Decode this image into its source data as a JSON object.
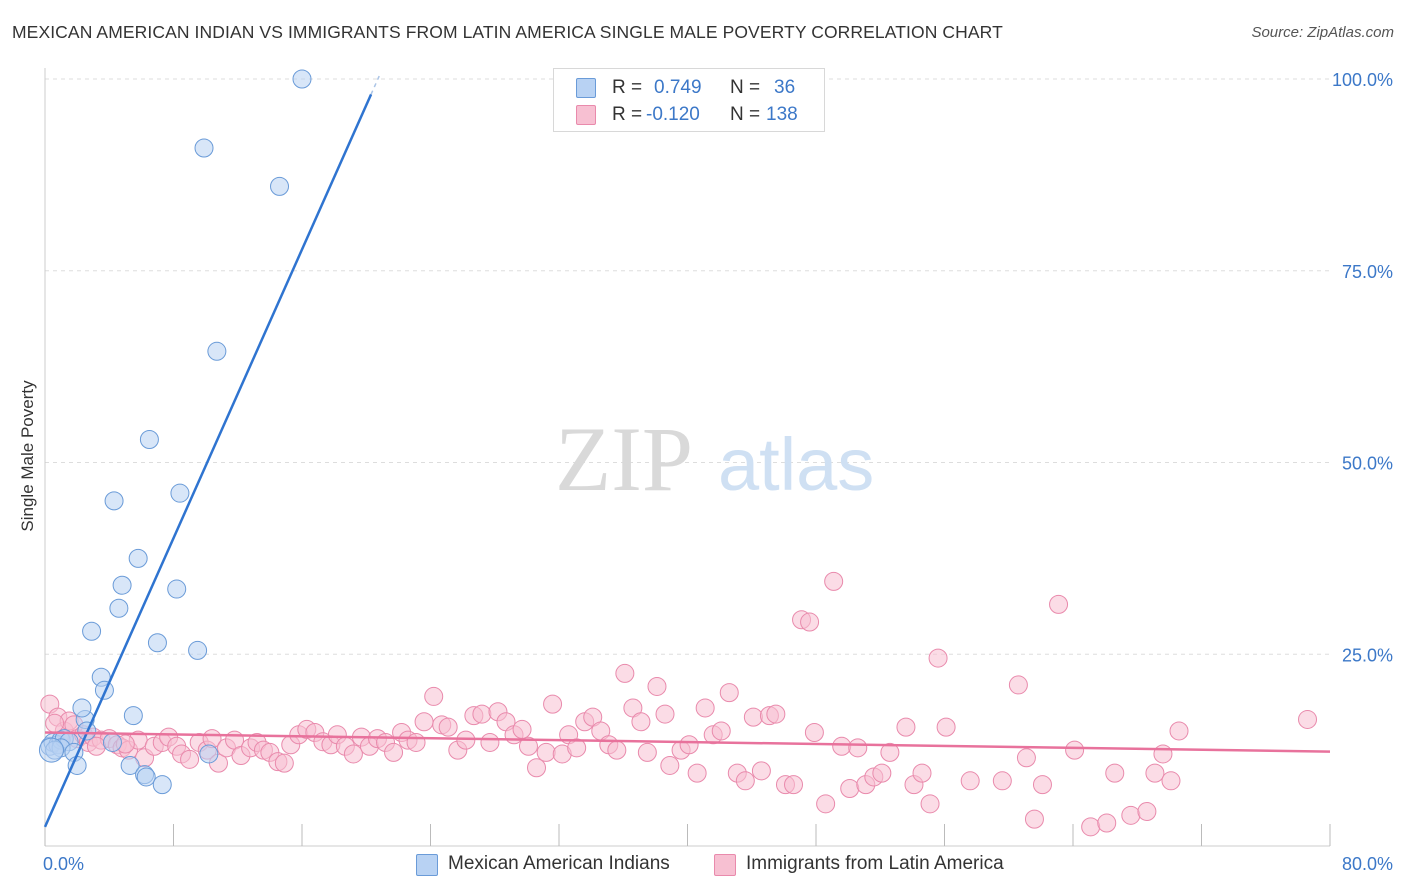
{
  "title": "MEXICAN AMERICAN INDIAN VS IMMIGRANTS FROM LATIN AMERICA SINGLE MALE POVERTY CORRELATION CHART",
  "source": "Source: ZipAtlas.com",
  "watermark": {
    "zip": "ZIP",
    "atlas": "atlas"
  },
  "colors": {
    "blue_fill": "#b8d2f3",
    "blue_stroke": "#6a9bd8",
    "blue_line": "#2f74d0",
    "pink_fill": "#f7c0d2",
    "pink_stroke": "#e98aac",
    "pink_line": "#e8729c",
    "axis_text": "#3c78c8",
    "grid": "#dddddd"
  },
  "legend": {
    "rows": [
      {
        "swatch": "blue",
        "r_label": "R =",
        "r_value": "0.749",
        "n_label": "N =",
        "n_value": "36"
      },
      {
        "swatch": "pink",
        "r_label": "R =",
        "r_value": "-0.120",
        "n_label": "N =",
        "n_value": "138"
      }
    ]
  },
  "bottom_legend": [
    {
      "swatch": "blue",
      "label": "Mexican American Indians"
    },
    {
      "swatch": "pink",
      "label": "Immigrants from Latin America"
    }
  ],
  "chart_data": {
    "type": "scatter",
    "title": "MEXICAN AMERICAN INDIAN VS IMMIGRANTS FROM LATIN AMERICA SINGLE MALE POVERTY CORRELATION CHART",
    "xlabel": "",
    "ylabel": "Single Male Poverty",
    "xlim": [
      0,
      80
    ],
    "ylim": [
      0,
      100
    ],
    "x_tick_labels": [
      "0.0%",
      "80.0%"
    ],
    "y_ticks": [
      25,
      50,
      75,
      100
    ],
    "y_tick_labels": [
      "25.0%",
      "50.0%",
      "75.0%",
      "100.0%"
    ],
    "grid": true,
    "legend_position": "top-center",
    "series": [
      {
        "name": "Mexican American Indians",
        "color": "blue",
        "r": 0.749,
        "n": 36,
        "trend": {
          "x": [
            0,
            20.3
          ],
          "y": [
            2.5,
            98
          ]
        },
        "points": [
          [
            0.3,
            13
          ],
          [
            0.5,
            13.5
          ],
          [
            0.8,
            13.2
          ],
          [
            1.0,
            13.8
          ],
          [
            1.2,
            14
          ],
          [
            1.5,
            13.6
          ],
          [
            1.0,
            12.8
          ],
          [
            0.6,
            12.5
          ],
          [
            1.8,
            12.2
          ],
          [
            2.0,
            10.5
          ],
          [
            2.5,
            16.5
          ],
          [
            2.6,
            15
          ],
          [
            2.3,
            18
          ],
          [
            2.9,
            28
          ],
          [
            3.5,
            22
          ],
          [
            3.7,
            20.3
          ],
          [
            4.2,
            13.5
          ],
          [
            4.3,
            45
          ],
          [
            4.6,
            31
          ],
          [
            4.8,
            34
          ],
          [
            5.5,
            17
          ],
          [
            5.8,
            37.5
          ],
          [
            5.3,
            10.5
          ],
          [
            6.2,
            9.3
          ],
          [
            6.5,
            53
          ],
          [
            6.3,
            9
          ],
          [
            7.0,
            26.5
          ],
          [
            7.3,
            8
          ],
          [
            8.2,
            33.5
          ],
          [
            8.4,
            46
          ],
          [
            9.5,
            25.5
          ],
          [
            9.9,
            91
          ],
          [
            10.2,
            12
          ],
          [
            10.7,
            64.5
          ],
          [
            14.6,
            86
          ],
          [
            16.0,
            100
          ]
        ]
      },
      {
        "name": "Immigrants from Latin America",
        "color": "pink",
        "r": -0.12,
        "n": 138,
        "trend": {
          "x": [
            0,
            80
          ],
          "y": [
            14.8,
            12.3
          ]
        },
        "points": [
          [
            0.3,
            18.5
          ],
          [
            0.8,
            16.8
          ],
          [
            1.2,
            15
          ],
          [
            1.5,
            16.3
          ],
          [
            1.8,
            15.8
          ],
          [
            2.0,
            14
          ],
          [
            2.4,
            14.5
          ],
          [
            2.7,
            13.5
          ],
          [
            3.0,
            14.2
          ],
          [
            3.5,
            13.8
          ],
          [
            4.0,
            14
          ],
          [
            4.5,
            13.2
          ],
          [
            4.8,
            12.8
          ],
          [
            5.2,
            12.5
          ],
          [
            5.8,
            13.8
          ],
          [
            6.2,
            11.5
          ],
          [
            6.8,
            13
          ],
          [
            7.3,
            13.5
          ],
          [
            7.7,
            14.2
          ],
          [
            8.2,
            13
          ],
          [
            8.5,
            12
          ],
          [
            9.0,
            11.3
          ],
          [
            9.6,
            13.5
          ],
          [
            10.1,
            12.5
          ],
          [
            10.4,
            14
          ],
          [
            10.8,
            10.8
          ],
          [
            11.3,
            12.8
          ],
          [
            11.8,
            13.8
          ],
          [
            12.2,
            11.8
          ],
          [
            12.8,
            12.8
          ],
          [
            13.2,
            13.5
          ],
          [
            13.6,
            12.5
          ],
          [
            14.0,
            12.2
          ],
          [
            14.5,
            11
          ],
          [
            14.9,
            10.8
          ],
          [
            15.3,
            13.2
          ],
          [
            15.8,
            14.5
          ],
          [
            16.3,
            15.2
          ],
          [
            16.8,
            14.8
          ],
          [
            17.3,
            13.6
          ],
          [
            17.8,
            13.2
          ],
          [
            18.2,
            14.5
          ],
          [
            18.7,
            13
          ],
          [
            19.2,
            12
          ],
          [
            19.7,
            14.2
          ],
          [
            20.2,
            13
          ],
          [
            20.7,
            14
          ],
          [
            21.2,
            13.5
          ],
          [
            21.7,
            12.2
          ],
          [
            22.2,
            14.8
          ],
          [
            22.6,
            13.8
          ],
          [
            23.1,
            13.5
          ],
          [
            23.6,
            16.2
          ],
          [
            24.2,
            19.5
          ],
          [
            24.7,
            15.8
          ],
          [
            25.1,
            15.5
          ],
          [
            25.7,
            12.5
          ],
          [
            26.2,
            13.8
          ],
          [
            26.7,
            17
          ],
          [
            27.2,
            17.2
          ],
          [
            27.7,
            13.5
          ],
          [
            28.2,
            17.5
          ],
          [
            28.7,
            16.2
          ],
          [
            29.2,
            14.5
          ],
          [
            29.7,
            15.2
          ],
          [
            30.1,
            13
          ],
          [
            30.6,
            10.2
          ],
          [
            31.2,
            12.2
          ],
          [
            31.6,
            18.5
          ],
          [
            32.2,
            12
          ],
          [
            32.6,
            14.5
          ],
          [
            33.1,
            12.8
          ],
          [
            33.6,
            16.2
          ],
          [
            34.1,
            16.8
          ],
          [
            34.6,
            15
          ],
          [
            35.1,
            13.2
          ],
          [
            35.6,
            12.5
          ],
          [
            36.1,
            22.5
          ],
          [
            36.6,
            18
          ],
          [
            37.1,
            16.2
          ],
          [
            37.5,
            12.2
          ],
          [
            38.1,
            20.8
          ],
          [
            38.6,
            17.2
          ],
          [
            38.9,
            10.5
          ],
          [
            39.6,
            12.5
          ],
          [
            40.1,
            13.2
          ],
          [
            40.6,
            9.5
          ],
          [
            41.1,
            18
          ],
          [
            41.6,
            14.5
          ],
          [
            42.1,
            15
          ],
          [
            42.6,
            20
          ],
          [
            43.1,
            9.5
          ],
          [
            43.6,
            8.5
          ],
          [
            44.1,
            16.8
          ],
          [
            44.6,
            9.8
          ],
          [
            45.1,
            17
          ],
          [
            45.5,
            17.2
          ],
          [
            46.1,
            8
          ],
          [
            46.6,
            8
          ],
          [
            47.1,
            29.5
          ],
          [
            47.6,
            29.2
          ],
          [
            47.9,
            14.8
          ],
          [
            48.6,
            5.5
          ],
          [
            49.1,
            34.5
          ],
          [
            49.6,
            13
          ],
          [
            50.1,
            7.5
          ],
          [
            50.6,
            12.8
          ],
          [
            51.1,
            8
          ],
          [
            51.6,
            9
          ],
          [
            52.1,
            9.5
          ],
          [
            52.6,
            12.2
          ],
          [
            53.6,
            15.5
          ],
          [
            54.1,
            8
          ],
          [
            54.6,
            9.5
          ],
          [
            55.1,
            5.5
          ],
          [
            55.6,
            24.5
          ],
          [
            56.1,
            15.5
          ],
          [
            57.6,
            8.5
          ],
          [
            59.6,
            8.5
          ],
          [
            60.6,
            21
          ],
          [
            61.1,
            11.5
          ],
          [
            61.6,
            3.5
          ],
          [
            62.1,
            8
          ],
          [
            63.1,
            31.5
          ],
          [
            64.1,
            12.5
          ],
          [
            65.1,
            2.5
          ],
          [
            66.1,
            3
          ],
          [
            66.6,
            9.5
          ],
          [
            67.6,
            4
          ],
          [
            68.6,
            4.5
          ],
          [
            69.1,
            9.5
          ],
          [
            69.6,
            12
          ],
          [
            70.1,
            8.5
          ],
          [
            70.6,
            15
          ],
          [
            78.6,
            16.5
          ],
          [
            0.6,
            16
          ],
          [
            3.2,
            13
          ],
          [
            5.0,
            13.3
          ]
        ]
      }
    ]
  }
}
